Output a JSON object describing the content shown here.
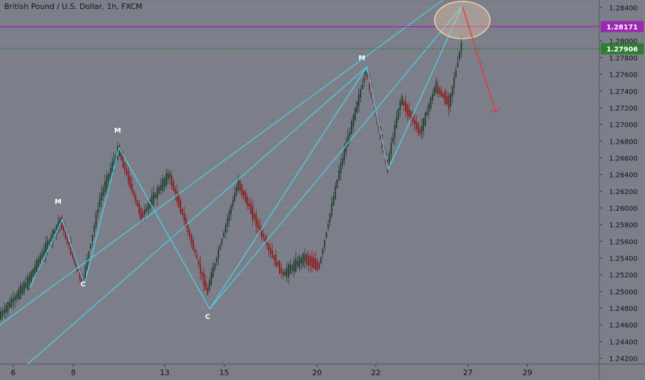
{
  "chart_title": "British Pound / U.S. Dollar, 1h, FXCM",
  "chart_data": {
    "type": "candlestick",
    "title": "British Pound / U.S. Dollar, 1h, FXCM",
    "ylim": [
      1.2413,
      1.2849
    ],
    "y_ticks": [
      "1.28400",
      "1.28000",
      "1.27800",
      "1.27600",
      "1.27400",
      "1.27200",
      "1.27000",
      "1.26800",
      "1.26600",
      "1.26400",
      "1.26200",
      "1.26000",
      "1.25800",
      "1.25600",
      "1.25400",
      "1.25200",
      "1.25000",
      "1.24800",
      "1.24600",
      "1.24400",
      "1.24200"
    ],
    "x_ticks": [
      "6",
      "8",
      "13",
      "15",
      "20",
      "22",
      "27",
      "29"
    ],
    "path_points": [
      {
        "x": "6",
        "y": 1.2475
      },
      {
        "x": "8",
        "y": 1.2525
      },
      {
        "x": "13",
        "y": 1.2635
      },
      {
        "x": "15",
        "y": 1.256
      },
      {
        "x": "20",
        "y": 1.2545
      },
      {
        "x": "22",
        "y": 1.266
      },
      {
        "x": "27",
        "y": 1.279
      }
    ],
    "horizontal_lines": [
      {
        "price": 1.28171,
        "label": "1.28171",
        "color": "#9c27b0"
      },
      {
        "price": 1.27906,
        "label": "1.27906",
        "color": "#2e7d32",
        "dotted": true
      }
    ],
    "wave_labels": [
      {
        "text": "M",
        "price": 1.2605
      },
      {
        "text": "C",
        "price": 1.2506
      },
      {
        "text": "M",
        "price": 1.269
      },
      {
        "text": "C",
        "price": 1.2467
      },
      {
        "text": "M",
        "price": 1.2777
      }
    ],
    "pattern_points": [
      1.2504,
      1.2586,
      1.2508,
      1.2672,
      1.2479,
      1.2769,
      1.2646,
      1.2842
    ],
    "channel_upper": [
      [
        1.2505,
        1.2586
      ],
      [
        1.2586,
        1.2769
      ],
      [
        1.2769,
        1.2849
      ]
    ],
    "projection_target": 1.2715,
    "colors": {
      "background": "#7c7e8a",
      "pattern": "#4dd0e1",
      "up": "#1f3d2a",
      "down": "#8b1a1a",
      "arrow": "#e53935",
      "ellipse": "#f5d0a9",
      "grid": "#8a8c97"
    }
  }
}
